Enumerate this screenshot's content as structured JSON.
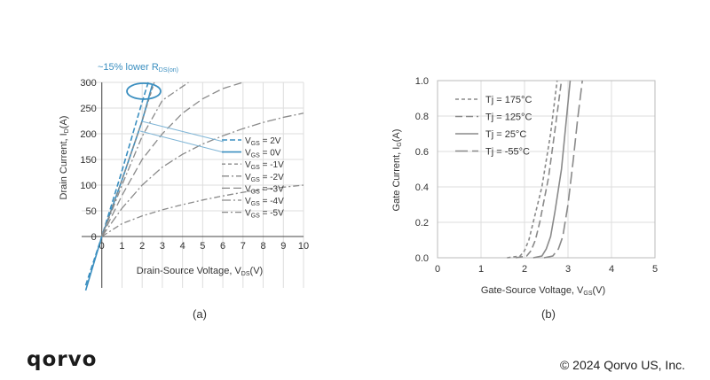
{
  "chart_data": [
    {
      "type": "line",
      "panel_label": "(a)",
      "annotation": "~15% lower R",
      "annotation_sub": "DS(on)",
      "xlabel_main": "Drain-Source Voltage, V",
      "xlabel_sub": "DS",
      "xlabel_unit": "(V)",
      "ylabel_main": "Drain Current, I",
      "ylabel_sub": "D",
      "ylabel_unit": "(A)",
      "xlim": [
        -1,
        10
      ],
      "ylim": [
        -100,
        300
      ],
      "xticks": [
        0,
        1,
        2,
        3,
        4,
        5,
        6,
        7,
        8,
        9,
        10
      ],
      "yticks": [
        0,
        50,
        100,
        150,
        200,
        250,
        300
      ],
      "grid": true,
      "legend_position": "right",
      "series": [
        {
          "name": "2V",
          "legend_sub": "GS",
          "color": "#3b8fc0",
          "dash": "6,3",
          "width": 1.6,
          "x": [
            -0.8,
            0,
            1,
            2,
            2.3
          ],
          "y": [
            -95,
            0,
            128,
            262,
            300
          ]
        },
        {
          "name": "0V",
          "legend_sub": "GS",
          "color": "#3b8fc0",
          "dash": "",
          "width": 1.6,
          "x": [
            -0.8,
            0,
            1,
            2,
            2.5
          ],
          "y": [
            -105,
            0,
            110,
            225,
            295
          ]
        },
        {
          "name": "-1V",
          "legend_sub": "GS",
          "color": "#8a8a8a",
          "dash": "4,3",
          "width": 1.3,
          "x": [
            0,
            1,
            2,
            2.6
          ],
          "y": [
            0,
            110,
            225,
            300
          ]
        },
        {
          "name": "-2V",
          "legend_sub": "GS",
          "color": "#8a8a8a",
          "dash": "8,3,2,3",
          "width": 1.3,
          "x": [
            0,
            1,
            2,
            3,
            4.3
          ],
          "y": [
            0,
            100,
            195,
            265,
            300
          ]
        },
        {
          "name": "-3V",
          "legend_sub": "GS",
          "color": "#8a8a8a",
          "dash": "9,4",
          "width": 1.3,
          "x": [
            0,
            1,
            2,
            3,
            4,
            5,
            6,
            7
          ],
          "y": [
            0,
            80,
            150,
            200,
            240,
            268,
            288,
            300
          ]
        },
        {
          "name": "-4V",
          "legend_sub": "GS",
          "color": "#8a8a8a",
          "dash": "10,3,2,3",
          "width": 1.3,
          "x": [
            0,
            1,
            2,
            3,
            4,
            5,
            6,
            7,
            8,
            9,
            10
          ],
          "y": [
            0,
            55,
            100,
            135,
            160,
            180,
            196,
            210,
            222,
            232,
            240
          ]
        },
        {
          "name": "-5V",
          "legend_sub": "GS",
          "color": "#8a8a8a",
          "dash": "7,3,2,3",
          "width": 1.3,
          "x": [
            0,
            1,
            2,
            3,
            4,
            5,
            6,
            7,
            8,
            9,
            10
          ],
          "y": [
            0,
            25,
            40,
            52,
            62,
            71,
            79,
            86,
            92,
            96,
            100
          ]
        }
      ]
    },
    {
      "type": "line",
      "panel_label": "(b)",
      "xlabel_main": "Gate-Source Voltage, V",
      "xlabel_sub": "GS",
      "xlabel_unit": "(V)",
      "ylabel_main": "Gate Current, I",
      "ylabel_sub": "G",
      "ylabel_unit": "(A)",
      "xlim": [
        0,
        5
      ],
      "ylim": [
        0,
        1.0
      ],
      "xticks": [
        0,
        1,
        2,
        3,
        4,
        5
      ],
      "yticks": [
        "0.0",
        "0.2",
        "0.4",
        "0.6",
        "0.8",
        "1.0"
      ],
      "grid": true,
      "legend_position": "top-left",
      "series": [
        {
          "name": "Tj = 175°C",
          "color": "#8a8a8a",
          "dash": "4,3",
          "width": 1.6,
          "x": [
            1.6,
            1.9,
            2.0,
            2.1,
            2.2,
            2.4,
            2.6,
            2.75
          ],
          "y": [
            0,
            0.01,
            0.04,
            0.1,
            0.2,
            0.4,
            0.7,
            1.0
          ]
        },
        {
          "name": "Tj = 125°C",
          "color": "#8a8a8a",
          "dash": "8,4",
          "width": 1.6,
          "x": [
            1.8,
            2.05,
            2.15,
            2.25,
            2.35,
            2.55,
            2.7,
            2.85
          ],
          "y": [
            0,
            0.01,
            0.04,
            0.1,
            0.2,
            0.45,
            0.72,
            1.0
          ]
        },
        {
          "name": "Tj = 25°C",
          "color": "#8a8a8a",
          "dash": "",
          "width": 1.6,
          "x": [
            2.2,
            2.4,
            2.5,
            2.6,
            2.7,
            2.85,
            2.95,
            3.05
          ],
          "y": [
            0,
            0.01,
            0.05,
            0.12,
            0.26,
            0.5,
            0.75,
            1.0
          ]
        },
        {
          "name": "Tj = -55°C",
          "color": "#8a8a8a",
          "dash": "14,5",
          "width": 1.6,
          "x": [
            2.45,
            2.65,
            2.78,
            2.88,
            3.0,
            3.12,
            3.22,
            3.33
          ],
          "y": [
            0,
            0.01,
            0.05,
            0.12,
            0.3,
            0.55,
            0.78,
            1.0
          ]
        }
      ]
    }
  ],
  "footer": {
    "logo_text": "qorvo",
    "copyright": "© 2024 Qorvo US, Inc."
  }
}
